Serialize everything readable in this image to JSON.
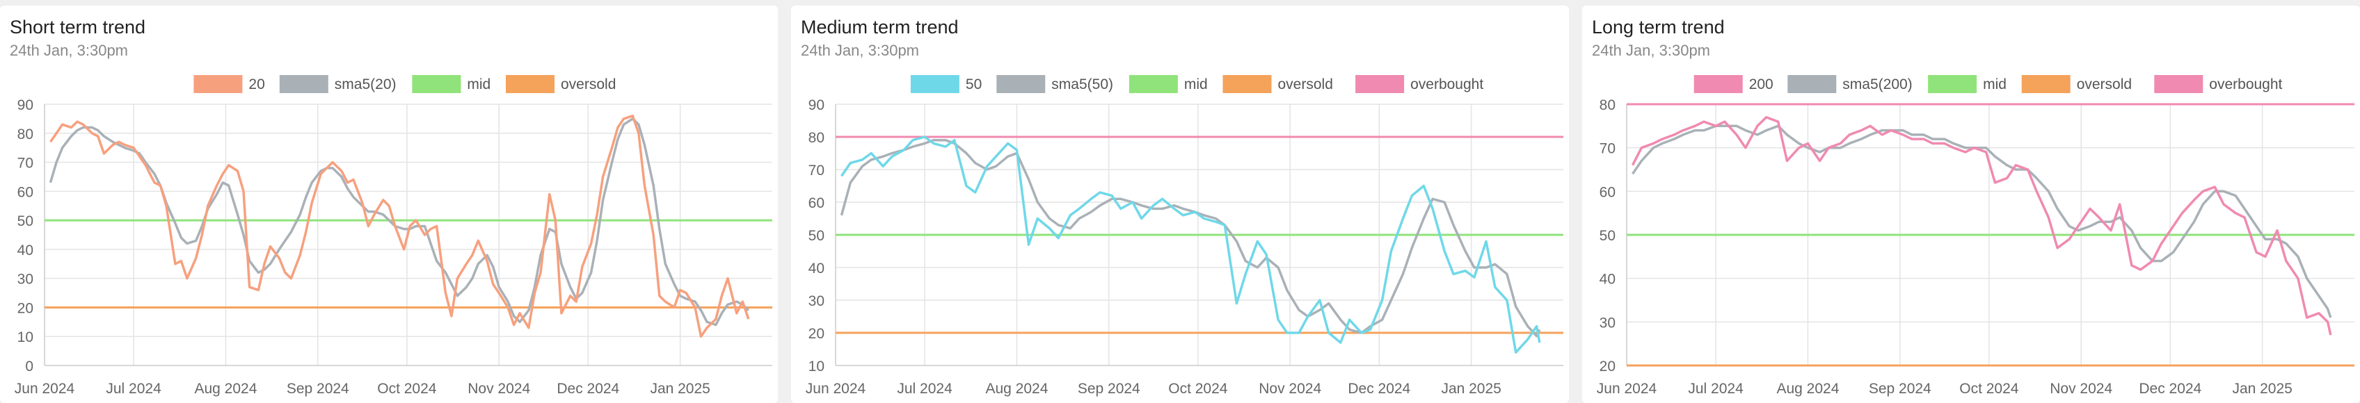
{
  "chart_data": [
    {
      "type": "line",
      "title": "Short term trend",
      "subtitle": "24th Jan, 3:30pm",
      "legend": [
        "20",
        "sma5(20)",
        "mid",
        "oversold"
      ],
      "legend_position": "top-center",
      "grid": true,
      "colors": {
        "series": "#f7a07e",
        "sma": "#a9b1b7",
        "mid": "#8fe37a",
        "oversold": "#f5a25b",
        "overbought": "#f08ab0"
      },
      "ylim": [
        0,
        90
      ],
      "yticks": [
        "0",
        "10",
        "20",
        "30",
        "40",
        "50",
        "60",
        "70",
        "80",
        "90"
      ],
      "xlim": [
        "2024-06-01",
        "2025-02-01"
      ],
      "xticks": [
        {
          "date": "2024-06-01",
          "label": "Jun 2024"
        },
        {
          "date": "2024-07-01",
          "label": "Jul 2024"
        },
        {
          "date": "2024-08-01",
          "label": "Aug 2024"
        },
        {
          "date": "2024-09-01",
          "label": "Sep 2024"
        },
        {
          "date": "2024-10-01",
          "label": "Oct 2024"
        },
        {
          "date": "2024-11-01",
          "label": "Nov 2024"
        },
        {
          "date": "2024-12-01",
          "label": "Dec 2024"
        },
        {
          "date": "2025-01-01",
          "label": "Jan 2025"
        }
      ],
      "mid": 50,
      "oversold": 20,
      "overbought": null,
      "x": [
        "2024-06-03",
        "2024-06-05",
        "2024-06-07",
        "2024-06-10",
        "2024-06-12",
        "2024-06-14",
        "2024-06-17",
        "2024-06-19",
        "2024-06-21",
        "2024-06-24",
        "2024-06-26",
        "2024-06-28",
        "2024-07-01",
        "2024-07-03",
        "2024-07-05",
        "2024-07-08",
        "2024-07-10",
        "2024-07-12",
        "2024-07-15",
        "2024-07-17",
        "2024-07-19",
        "2024-07-22",
        "2024-07-24",
        "2024-07-26",
        "2024-07-29",
        "2024-07-31",
        "2024-08-02",
        "2024-08-05",
        "2024-08-07",
        "2024-08-09",
        "2024-08-12",
        "2024-08-14",
        "2024-08-16",
        "2024-08-19",
        "2024-08-21",
        "2024-08-23",
        "2024-08-26",
        "2024-08-28",
        "2024-08-30",
        "2024-09-02",
        "2024-09-04",
        "2024-09-06",
        "2024-09-09",
        "2024-09-11",
        "2024-09-13",
        "2024-09-16",
        "2024-09-18",
        "2024-09-20",
        "2024-09-23",
        "2024-09-25",
        "2024-09-27",
        "2024-09-30",
        "2024-10-02",
        "2024-10-04",
        "2024-10-07",
        "2024-10-09",
        "2024-10-11",
        "2024-10-14",
        "2024-10-16",
        "2024-10-18",
        "2024-10-21",
        "2024-10-23",
        "2024-10-25",
        "2024-10-28",
        "2024-10-30",
        "2024-11-01",
        "2024-11-04",
        "2024-11-06",
        "2024-11-08",
        "2024-11-11",
        "2024-11-13",
        "2024-11-15",
        "2024-11-18",
        "2024-11-20",
        "2024-11-22",
        "2024-11-25",
        "2024-11-27",
        "2024-11-29",
        "2024-12-02",
        "2024-12-04",
        "2024-12-06",
        "2024-12-09",
        "2024-12-11",
        "2024-12-13",
        "2024-12-16",
        "2024-12-18",
        "2024-12-20",
        "2024-12-23",
        "2024-12-25",
        "2024-12-27",
        "2024-12-30",
        "2025-01-01",
        "2025-01-03",
        "2025-01-06",
        "2025-01-08",
        "2025-01-10",
        "2025-01-13",
        "2025-01-15",
        "2025-01-17",
        "2025-01-20",
        "2025-01-22",
        "2025-01-24"
      ],
      "series": [
        {
          "name": "20",
          "values": [
            77,
            80,
            83,
            82,
            84,
            83,
            80,
            79,
            73,
            76,
            77,
            76,
            75,
            72,
            69,
            63,
            62,
            55,
            35,
            36,
            30,
            37,
            45,
            55,
            62,
            66,
            69,
            67,
            60,
            27,
            26,
            35,
            41,
            37,
            32,
            30,
            38,
            46,
            56,
            66,
            68,
            70,
            67,
            63,
            64,
            56,
            48,
            52,
            57,
            55,
            48,
            40,
            48,
            50,
            45,
            47,
            48,
            25,
            17,
            30,
            35,
            38,
            43,
            36,
            28,
            25,
            20,
            14,
            18,
            13,
            25,
            32,
            59,
            50,
            18,
            24,
            22,
            34,
            42,
            52,
            65,
            75,
            82,
            85,
            86,
            80,
            62,
            45,
            24,
            22,
            20,
            26,
            25,
            20,
            10,
            13,
            16,
            24,
            30,
            18,
            22,
            16
          ]
        },
        {
          "name": "sma5(20)",
          "values": [
            63,
            70,
            75,
            79,
            81,
            82,
            82,
            81,
            79,
            77,
            76,
            75,
            74,
            73,
            70,
            66,
            62,
            56,
            49,
            44,
            42,
            43,
            48,
            54,
            59,
            63,
            62,
            52,
            45,
            36,
            32,
            33,
            35,
            40,
            43,
            46,
            52,
            58,
            63,
            67,
            68,
            68,
            65,
            61,
            58,
            55,
            53,
            53,
            52,
            50,
            48,
            47,
            47,
            48,
            48,
            42,
            36,
            32,
            28,
            24,
            27,
            30,
            35,
            38,
            34,
            27,
            22,
            17,
            15,
            19,
            27,
            38,
            47,
            46,
            35,
            27,
            23,
            25,
            32,
            43,
            57,
            70,
            78,
            83,
            85,
            83,
            76,
            62,
            47,
            35,
            28,
            24,
            23,
            22,
            19,
            15,
            14,
            18,
            21,
            22,
            21,
            19
          ]
        }
      ]
    },
    {
      "type": "line",
      "title": "Medium term trend",
      "subtitle": "24th Jan, 3:30pm",
      "legend": [
        "50",
        "sma5(50)",
        "mid",
        "oversold",
        "overbought"
      ],
      "legend_position": "top-center",
      "grid": true,
      "colors": {
        "series": "#6fd8e8",
        "sma": "#a9b1b7",
        "mid": "#8fe37a",
        "oversold": "#f5a25b",
        "overbought": "#f08ab0"
      },
      "ylim": [
        10,
        90
      ],
      "yticks": [
        "10",
        "20",
        "30",
        "40",
        "50",
        "60",
        "70",
        "80",
        "90"
      ],
      "xlim": [
        "2024-06-01",
        "2025-02-01"
      ],
      "xticks": [
        {
          "date": "2024-06-01",
          "label": "Jun 2024"
        },
        {
          "date": "2024-07-01",
          "label": "Jul 2024"
        },
        {
          "date": "2024-08-01",
          "label": "Aug 2024"
        },
        {
          "date": "2024-09-01",
          "label": "Sep 2024"
        },
        {
          "date": "2024-10-01",
          "label": "Oct 2024"
        },
        {
          "date": "2024-11-01",
          "label": "Nov 2024"
        },
        {
          "date": "2024-12-01",
          "label": "Dec 2024"
        },
        {
          "date": "2025-01-01",
          "label": "Jan 2025"
        }
      ],
      "mid": 50,
      "oversold": 20,
      "overbought": 80,
      "x": [
        "2024-06-03",
        "2024-06-06",
        "2024-06-10",
        "2024-06-13",
        "2024-06-17",
        "2024-06-20",
        "2024-06-24",
        "2024-06-27",
        "2024-07-01",
        "2024-07-04",
        "2024-07-08",
        "2024-07-11",
        "2024-07-15",
        "2024-07-18",
        "2024-07-22",
        "2024-07-25",
        "2024-07-29",
        "2024-08-01",
        "2024-08-05",
        "2024-08-08",
        "2024-08-12",
        "2024-08-15",
        "2024-08-19",
        "2024-08-22",
        "2024-08-26",
        "2024-08-29",
        "2024-09-02",
        "2024-09-05",
        "2024-09-09",
        "2024-09-12",
        "2024-09-16",
        "2024-09-19",
        "2024-09-23",
        "2024-09-26",
        "2024-09-30",
        "2024-10-03",
        "2024-10-07",
        "2024-10-10",
        "2024-10-14",
        "2024-10-17",
        "2024-10-21",
        "2024-10-24",
        "2024-10-28",
        "2024-10-31",
        "2024-11-04",
        "2024-11-07",
        "2024-11-11",
        "2024-11-14",
        "2024-11-18",
        "2024-11-21",
        "2024-11-25",
        "2024-11-28",
        "2024-12-02",
        "2024-12-05",
        "2024-12-09",
        "2024-12-12",
        "2024-12-16",
        "2024-12-19",
        "2024-12-23",
        "2024-12-26",
        "2024-12-30",
        "2025-01-02",
        "2025-01-06",
        "2025-01-09",
        "2025-01-13",
        "2025-01-16",
        "2025-01-20",
        "2025-01-23",
        "2025-01-24"
      ],
      "series": [
        {
          "name": "50",
          "values": [
            68,
            72,
            73,
            75,
            71,
            74,
            76,
            79,
            80,
            78,
            77,
            79,
            65,
            63,
            71,
            74,
            78,
            76,
            47,
            55,
            52,
            49,
            56,
            58,
            61,
            63,
            62,
            58,
            60,
            55,
            59,
            61,
            58,
            56,
            57,
            55,
            54,
            53,
            29,
            38,
            48,
            44,
            24,
            20,
            20,
            25,
            30,
            20,
            17,
            24,
            20,
            21,
            30,
            45,
            55,
            62,
            65,
            58,
            45,
            38,
            39,
            37,
            48,
            34,
            30,
            14,
            18,
            22,
            17
          ]
        },
        {
          "name": "sma5(50)",
          "values": [
            56,
            66,
            71,
            73,
            74,
            75,
            76,
            77,
            78,
            79,
            79,
            78,
            75,
            72,
            70,
            71,
            74,
            75,
            67,
            60,
            55,
            53,
            52,
            55,
            57,
            59,
            61,
            61,
            60,
            59,
            58,
            58,
            59,
            58,
            57,
            56,
            55,
            53,
            48,
            42,
            40,
            43,
            40,
            33,
            27,
            25,
            27,
            29,
            24,
            21,
            20,
            22,
            24,
            30,
            38,
            46,
            55,
            61,
            60,
            53,
            45,
            40,
            40,
            41,
            38,
            28,
            22,
            19,
            21
          ]
        }
      ]
    },
    {
      "type": "line",
      "title": "Long term trend",
      "subtitle": "24th Jan, 3:30pm",
      "legend": [
        "200",
        "sma5(200)",
        "mid",
        "oversold",
        "overbought"
      ],
      "legend_position": "top-center",
      "grid": true,
      "colors": {
        "series": "#f08ab0",
        "sma": "#a9b1b7",
        "mid": "#8fe37a",
        "oversold": "#f5a25b",
        "overbought": "#f08ab0"
      },
      "ylim": [
        20,
        80
      ],
      "yticks": [
        "20",
        "30",
        "40",
        "50",
        "60",
        "70",
        "80"
      ],
      "xlim": [
        "2024-06-01",
        "2025-02-01"
      ],
      "xticks": [
        {
          "date": "2024-06-01",
          "label": "Jun 2024"
        },
        {
          "date": "2024-07-01",
          "label": "Jul 2024"
        },
        {
          "date": "2024-08-01",
          "label": "Aug 2024"
        },
        {
          "date": "2024-09-01",
          "label": "Sep 2024"
        },
        {
          "date": "2024-10-01",
          "label": "Oct 2024"
        },
        {
          "date": "2024-11-01",
          "label": "Nov 2024"
        },
        {
          "date": "2024-12-01",
          "label": "Dec 2024"
        },
        {
          "date": "2025-01-01",
          "label": "Jan 2025"
        }
      ],
      "mid": 50,
      "oversold": 20,
      "overbought": 80,
      "x": [
        "2024-06-03",
        "2024-06-06",
        "2024-06-10",
        "2024-06-13",
        "2024-06-17",
        "2024-06-20",
        "2024-06-24",
        "2024-06-27",
        "2024-07-01",
        "2024-07-04",
        "2024-07-08",
        "2024-07-11",
        "2024-07-15",
        "2024-07-18",
        "2024-07-22",
        "2024-07-25",
        "2024-07-29",
        "2024-08-01",
        "2024-08-05",
        "2024-08-08",
        "2024-08-12",
        "2024-08-15",
        "2024-08-19",
        "2024-08-22",
        "2024-08-26",
        "2024-08-29",
        "2024-09-02",
        "2024-09-05",
        "2024-09-09",
        "2024-09-12",
        "2024-09-16",
        "2024-09-19",
        "2024-09-23",
        "2024-09-26",
        "2024-09-30",
        "2024-10-03",
        "2024-10-07",
        "2024-10-10",
        "2024-10-14",
        "2024-10-17",
        "2024-10-21",
        "2024-10-24",
        "2024-10-28",
        "2024-10-31",
        "2024-11-04",
        "2024-11-07",
        "2024-11-11",
        "2024-11-14",
        "2024-11-18",
        "2024-11-21",
        "2024-11-25",
        "2024-11-28",
        "2024-12-02",
        "2024-12-05",
        "2024-12-09",
        "2024-12-12",
        "2024-12-16",
        "2024-12-19",
        "2024-12-23",
        "2024-12-26",
        "2024-12-30",
        "2025-01-02",
        "2025-01-06",
        "2025-01-09",
        "2025-01-13",
        "2025-01-16",
        "2025-01-20",
        "2025-01-23",
        "2025-01-24"
      ],
      "series": [
        {
          "name": "200",
          "values": [
            66,
            70,
            71,
            72,
            73,
            74,
            75,
            76,
            75,
            76,
            73,
            70,
            75,
            77,
            76,
            67,
            70,
            71,
            67,
            70,
            71,
            73,
            74,
            75,
            73,
            74,
            73,
            72,
            72,
            71,
            71,
            70,
            69,
            70,
            69,
            62,
            63,
            66,
            65,
            60,
            54,
            47,
            49,
            52,
            56,
            54,
            51,
            57,
            43,
            42,
            44,
            48,
            52,
            55,
            58,
            60,
            61,
            57,
            55,
            54,
            46,
            45,
            51,
            44,
            40,
            31,
            32,
            30,
            27
          ]
        },
        {
          "name": "sma5(200)",
          "values": [
            64,
            67,
            70,
            71,
            72,
            73,
            74,
            74,
            75,
            75,
            75,
            74,
            73,
            74,
            75,
            73,
            71,
            70,
            69,
            70,
            70,
            71,
            72,
            73,
            74,
            74,
            74,
            73,
            73,
            72,
            72,
            71,
            70,
            70,
            70,
            68,
            66,
            65,
            65,
            63,
            60,
            56,
            52,
            51,
            52,
            53,
            53,
            54,
            51,
            47,
            44,
            44,
            46,
            49,
            53,
            57,
            60,
            60,
            59,
            56,
            52,
            49,
            49,
            48,
            45,
            40,
            36,
            33,
            31
          ]
        }
      ]
    }
  ]
}
